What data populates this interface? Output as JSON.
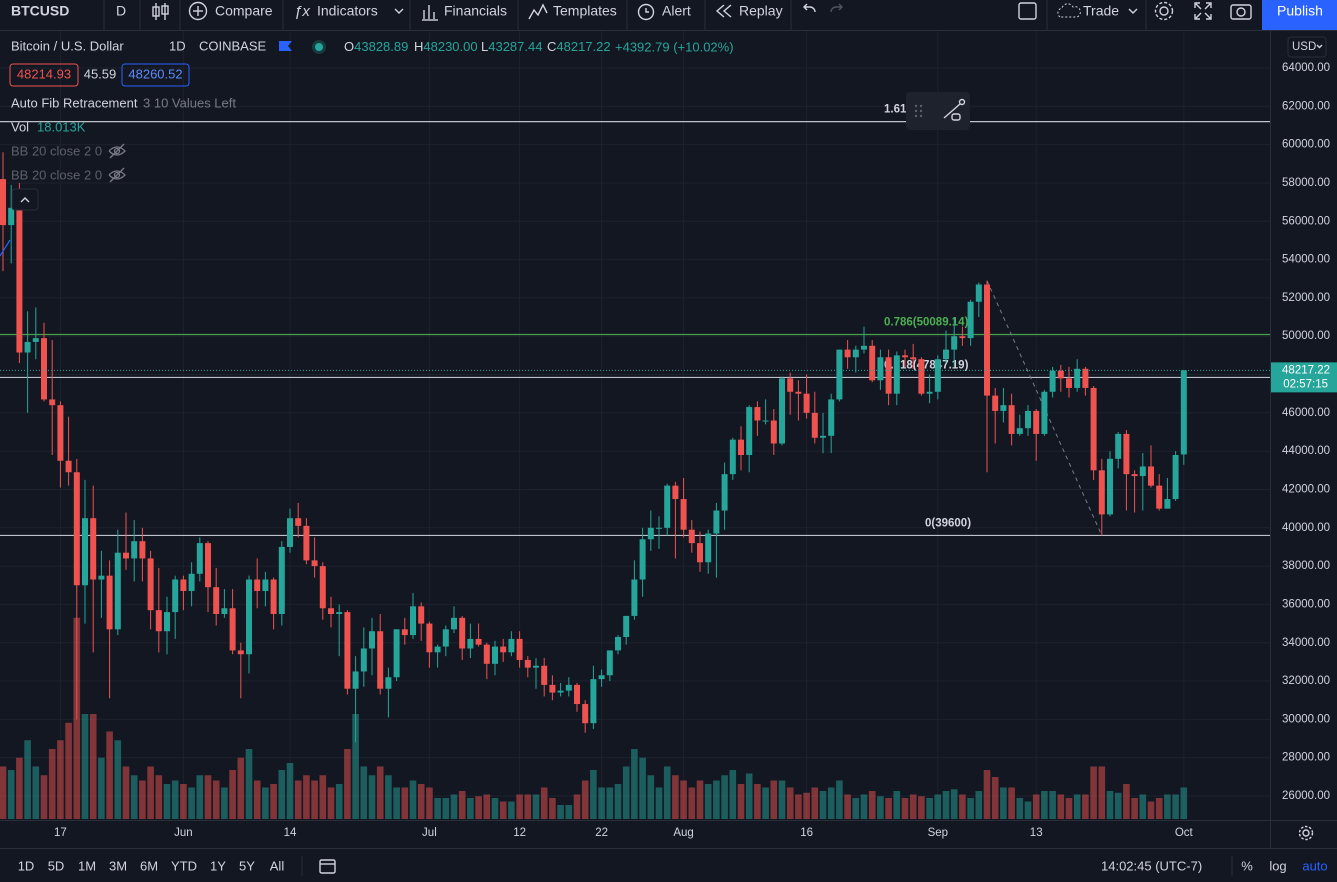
{
  "toolbar": {
    "symbol": "BTCUSD",
    "interval": "D",
    "buttons": [
      "Compare",
      "Indicators",
      "Financials",
      "Templates",
      "Alert",
      "Replay"
    ],
    "trade": "Trade",
    "publish": "Publish"
  },
  "legend": {
    "name": "Bitcoin / U.S. Dollar",
    "interval": "1D",
    "exchange": "COINBASE",
    "ohlc": [
      {
        "label": "O",
        "value": "43828.89"
      },
      {
        "label": "H",
        "value": "48230.00"
      },
      {
        "label": "L",
        "value": "43287.44"
      },
      {
        "label": "C",
        "value": "48217.22"
      }
    ],
    "change": "+4392.79 (+10.02%)",
    "bid": "48214.93",
    "spread": "45.59",
    "ask": "48260.52",
    "fib_name": "Auto Fib Retracement",
    "fib_note": "3 10 Values Left",
    "vol_name": "Vol",
    "vol_value": "18.013K",
    "bb": [
      "BB 20 close 2 0",
      "BB 20 close 2 0"
    ]
  },
  "chart_data": {
    "type": "candlestick",
    "up_color": "#26a69a",
    "down_color": "#ef5350",
    "candles": [
      [
        58200,
        59600,
        53400,
        55800
      ],
      [
        55800,
        57900,
        53800,
        56700
      ],
      [
        56700,
        58000,
        48600,
        49150
      ],
      [
        49150,
        51300,
        46000,
        49700
      ],
      [
        49700,
        51500,
        48800,
        49900
      ],
      [
        49900,
        50700,
        46600,
        46700
      ],
      [
        46700,
        49800,
        43800,
        46400
      ],
      [
        46400,
        46600,
        42100,
        43500
      ],
      [
        43500,
        45800,
        42200,
        42900
      ],
      [
        42900,
        43600,
        30000,
        37000
      ],
      [
        37000,
        42500,
        35000,
        40500
      ],
      [
        40500,
        42200,
        33500,
        37300
      ],
      [
        37300,
        38800,
        35300,
        37500
      ],
      [
        37500,
        38300,
        31100,
        34700
      ],
      [
        34700,
        39900,
        34400,
        38700
      ],
      [
        38700,
        40800,
        37800,
        38400
      ],
      [
        38400,
        40400,
        37200,
        39300
      ],
      [
        39300,
        40000,
        37200,
        38400
      ],
      [
        38400,
        38800,
        34700,
        35700
      ],
      [
        35700,
        37900,
        33500,
        34600
      ],
      [
        34600,
        36400,
        33400,
        35600
      ],
      [
        35600,
        37500,
        34200,
        37300
      ],
      [
        37300,
        37500,
        35700,
        36700
      ],
      [
        36700,
        38200,
        35900,
        37600
      ],
      [
        37600,
        39500,
        37200,
        39200
      ],
      [
        39200,
        39300,
        35600,
        36900
      ],
      [
        36900,
        37900,
        34900,
        35500
      ],
      [
        35500,
        36800,
        35300,
        35800
      ],
      [
        35800,
        36800,
        33400,
        33600
      ],
      [
        33600,
        34000,
        31100,
        33400
      ],
      [
        33400,
        37500,
        32400,
        37300
      ],
      [
        37300,
        38400,
        35800,
        36700
      ],
      [
        36700,
        37700,
        35900,
        37300
      ],
      [
        37300,
        37400,
        34700,
        35500
      ],
      [
        35500,
        39300,
        34900,
        39000
      ],
      [
        39000,
        41000,
        38700,
        40500
      ],
      [
        40500,
        41300,
        39500,
        40100
      ],
      [
        40100,
        40500,
        38100,
        38300
      ],
      [
        38300,
        39500,
        37400,
        38000
      ],
      [
        38000,
        38200,
        35200,
        35800
      ],
      [
        35800,
        36400,
        34800,
        35500
      ],
      [
        35500,
        36000,
        33300,
        35600
      ],
      [
        35600,
        35700,
        31300,
        31600
      ],
      [
        31600,
        33300,
        28800,
        32500
      ],
      [
        32500,
        34800,
        31700,
        33700
      ],
      [
        33700,
        35300,
        32300,
        34600
      ],
      [
        34600,
        35500,
        31300,
        31600
      ],
      [
        31600,
        32700,
        30100,
        32200
      ],
      [
        32200,
        34700,
        32000,
        34700
      ],
      [
        34700,
        35300,
        33900,
        34400
      ],
      [
        34400,
        36600,
        34200,
        35900
      ],
      [
        35900,
        36100,
        34100,
        35000
      ],
      [
        35000,
        35100,
        32700,
        33500
      ],
      [
        33500,
        33900,
        32700,
        33800
      ],
      [
        33800,
        34900,
        33300,
        34700
      ],
      [
        34700,
        35900,
        34500,
        35300
      ],
      [
        35300,
        35400,
        33100,
        33700
      ],
      [
        33700,
        35000,
        33200,
        34200
      ],
      [
        34200,
        35000,
        33800,
        33900
      ],
      [
        33900,
        34000,
        32100,
        32900
      ],
      [
        32900,
        34100,
        32300,
        33800
      ],
      [
        33800,
        34200,
        33000,
        33500
      ],
      [
        33500,
        34600,
        33300,
        34200
      ],
      [
        34200,
        34600,
        32700,
        33100
      ],
      [
        33100,
        33300,
        32200,
        32700
      ],
      [
        32700,
        33200,
        31600,
        32800
      ],
      [
        32800,
        33200,
        31200,
        31800
      ],
      [
        31800,
        32300,
        31000,
        31400
      ],
      [
        31400,
        31900,
        31200,
        31500
      ],
      [
        31500,
        32200,
        31200,
        31800
      ],
      [
        31800,
        31900,
        30400,
        30800
      ],
      [
        30800,
        31000,
        29300,
        29800
      ],
      [
        29800,
        32800,
        29500,
        32100
      ],
      [
        32100,
        32600,
        31700,
        32300
      ],
      [
        32300,
        33600,
        32000,
        33600
      ],
      [
        33600,
        34400,
        33400,
        34300
      ],
      [
        34300,
        35400,
        33900,
        35400
      ],
      [
        35400,
        38300,
        35200,
        37300
      ],
      [
        37300,
        40000,
        36400,
        39400
      ],
      [
        39400,
        40900,
        38800,
        40000
      ],
      [
        40000,
        40600,
        38900,
        40000
      ],
      [
        40000,
        42300,
        39600,
        42200
      ],
      [
        42200,
        42400,
        38400,
        41500
      ],
      [
        41500,
        42600,
        39500,
        39900
      ],
      [
        39900,
        40400,
        38700,
        39200
      ],
      [
        39200,
        39800,
        37700,
        38200
      ],
      [
        38200,
        39900,
        37600,
        39700
      ],
      [
        39700,
        41300,
        37400,
        40900
      ],
      [
        40900,
        43400,
        39900,
        42800
      ],
      [
        42800,
        44700,
        42500,
        44600
      ],
      [
        44600,
        45300,
        43000,
        43800
      ],
      [
        43800,
        46400,
        42900,
        46300
      ],
      [
        46300,
        46600,
        44800,
        45600
      ],
      [
        45600,
        46700,
        45400,
        45600
      ],
      [
        45600,
        46200,
        43800,
        44400
      ],
      [
        44400,
        47900,
        44300,
        47800
      ],
      [
        47800,
        48100,
        45900,
        47100
      ],
      [
        47100,
        47700,
        45600,
        47000
      ],
      [
        47000,
        48000,
        45700,
        46000
      ],
      [
        46000,
        47100,
        44400,
        44700
      ],
      [
        44700,
        46000,
        43900,
        44800
      ],
      [
        44800,
        47000,
        43900,
        46700
      ],
      [
        46700,
        49300,
        46600,
        49300
      ],
      [
        49300,
        49800,
        48300,
        48900
      ],
      [
        48900,
        49500,
        48100,
        49300
      ],
      [
        49300,
        50500,
        49100,
        49500
      ],
      [
        49500,
        49800,
        47600,
        47700
      ],
      [
        47700,
        49300,
        47200,
        48900
      ],
      [
        48900,
        49300,
        46400,
        47000
      ],
      [
        47000,
        49200,
        46400,
        49000
      ],
      [
        49000,
        49300,
        48400,
        48900
      ],
      [
        48900,
        49600,
        48300,
        48800
      ],
      [
        48800,
        48900,
        46900,
        47000
      ],
      [
        47000,
        48000,
        46500,
        47100
      ],
      [
        47100,
        49000,
        46700,
        48800
      ],
      [
        48800,
        50300,
        48600,
        49300
      ],
      [
        49300,
        51000,
        48400,
        50000
      ],
      [
        50000,
        50500,
        49500,
        49900
      ],
      [
        49900,
        51900,
        49500,
        51800
      ],
      [
        51800,
        52800,
        51000,
        52700
      ],
      [
        52700,
        52900,
        42900,
        46900
      ],
      [
        46900,
        47300,
        44400,
        46100
      ],
      [
        46100,
        47300,
        45500,
        46400
      ],
      [
        46400,
        47000,
        44300,
        44900
      ],
      [
        44900,
        45900,
        44800,
        45200
      ],
      [
        45200,
        46400,
        44800,
        46100
      ],
      [
        46100,
        46200,
        43500,
        44900
      ],
      [
        44900,
        47200,
        44800,
        47100
      ],
      [
        47100,
        48400,
        46800,
        48200
      ],
      [
        48200,
        48500,
        47100,
        47800
      ],
      [
        47800,
        48400,
        46800,
        47300
      ],
      [
        47300,
        48800,
        47100,
        48300
      ],
      [
        48300,
        48400,
        46900,
        47300
      ],
      [
        47300,
        47400,
        42500,
        43000
      ],
      [
        43000,
        43600,
        39600,
        40700
      ],
      [
        40700,
        44000,
        40600,
        43600
      ],
      [
        43600,
        45000,
        43100,
        44900
      ],
      [
        44900,
        45100,
        40900,
        42800
      ],
      [
        42800,
        43000,
        40800,
        42700
      ],
      [
        42700,
        43900,
        40900,
        43200
      ],
      [
        43200,
        44300,
        42100,
        42200
      ],
      [
        42200,
        42800,
        40900,
        41000
      ],
      [
        41000,
        42600,
        41000,
        41500
      ],
      [
        41500,
        44000,
        41400,
        43800
      ],
      [
        43828.89,
        48230,
        43287.44,
        48217.22
      ]
    ],
    "volumes": [
      30,
      28,
      35,
      45,
      30,
      25,
      40,
      45,
      55,
      115,
      60,
      60,
      35,
      50,
      45,
      30,
      25,
      22,
      30,
      25,
      20,
      22,
      20,
      18,
      25,
      25,
      22,
      18,
      28,
      35,
      40,
      22,
      18,
      20,
      28,
      32,
      22,
      25,
      22,
      25,
      18,
      20,
      40,
      60,
      30,
      25,
      30,
      25,
      18,
      18,
      22,
      20,
      18,
      12,
      12,
      14,
      16,
      12,
      13,
      14,
      12,
      10,
      10,
      14,
      14,
      14,
      18,
      12,
      8,
      8,
      14,
      22,
      28,
      18,
      18,
      20,
      30,
      40,
      35,
      25,
      18,
      30,
      25,
      22,
      18,
      22,
      20,
      22,
      25,
      28,
      20,
      26,
      20,
      18,
      22,
      22,
      18,
      14,
      15,
      18,
      16,
      18,
      22,
      14,
      12,
      14,
      16,
      13,
      12,
      16,
      12,
      14,
      13,
      12,
      14,
      16,
      17,
      14,
      12,
      16,
      28,
      24,
      18,
      18,
      12,
      10,
      14,
      16,
      16,
      14,
      12,
      14,
      14,
      30,
      30,
      16,
      15,
      20,
      12,
      14,
      10,
      12,
      14,
      14,
      18.013
    ],
    "ylim": [
      26000,
      64000
    ],
    "currency": "USD",
    "yticks": [
      {
        "value": 26000,
        "label": "26000.00"
      },
      {
        "value": 28000,
        "label": "28000.00"
      },
      {
        "value": 30000,
        "label": "30000.00"
      },
      {
        "value": 32000,
        "label": "32000.00"
      },
      {
        "value": 34000,
        "label": "34000.00"
      },
      {
        "value": 36000,
        "label": "36000.00"
      },
      {
        "value": 38000,
        "label": "38000.00"
      },
      {
        "value": 40000,
        "label": "40000.00"
      },
      {
        "value": 42000,
        "label": "42000.00"
      },
      {
        "value": 44000,
        "label": "44000.00"
      },
      {
        "value": 46000,
        "label": "46000.00"
      },
      {
        "value": 48000,
        "label": "48000.00"
      },
      {
        "value": 50000,
        "label": "50000.00"
      },
      {
        "value": 52000,
        "label": "52000.00"
      },
      {
        "value": 54000,
        "label": "54000.00"
      },
      {
        "value": 56000,
        "label": "56000.00"
      },
      {
        "value": 58000,
        "label": "58000.00"
      },
      {
        "value": 60000,
        "label": "60000.00"
      },
      {
        "value": 62000,
        "label": "62000.00"
      },
      {
        "value": 64000,
        "label": "64000.00"
      }
    ],
    "xticks": [
      {
        "value": 7,
        "label": "17"
      },
      {
        "value": 22,
        "label": "Jun"
      },
      {
        "value": 35,
        "label": "14"
      },
      {
        "value": 52,
        "label": "Jul"
      },
      {
        "value": 63,
        "label": "12"
      },
      {
        "value": 73,
        "label": "22"
      },
      {
        "value": 83,
        "label": "Aug"
      },
      {
        "value": 98,
        "label": "16"
      },
      {
        "value": 114,
        "label": "Sep"
      },
      {
        "value": 126,
        "label": "13"
      },
      {
        "value": 144,
        "label": "Oct"
      }
    ],
    "grid": true,
    "fib_levels": [
      {
        "label": "1.61",
        "value": 61200,
        "color": "#d1d4dc"
      },
      {
        "label": "0.786(50089.14)",
        "value": 50089.14,
        "color": "#4caf50"
      },
      {
        "label": "0.618(47847.19)",
        "value": 47847.19,
        "color": "#d1d4dc"
      },
      {
        "label": "0(39600)",
        "value": 39600,
        "color": "#d1d4dc"
      }
    ],
    "last_price": {
      "value": 48217.22,
      "label": "48217.22",
      "countdown": "02:57:15"
    }
  },
  "bottom_bar": {
    "ranges": [
      "1D",
      "5D",
      "1M",
      "3M",
      "6M",
      "YTD",
      "1Y",
      "5Y",
      "All"
    ],
    "time": "14:02:45 (UTC-7)",
    "percent": "%",
    "log": "log",
    "auto": "auto"
  }
}
